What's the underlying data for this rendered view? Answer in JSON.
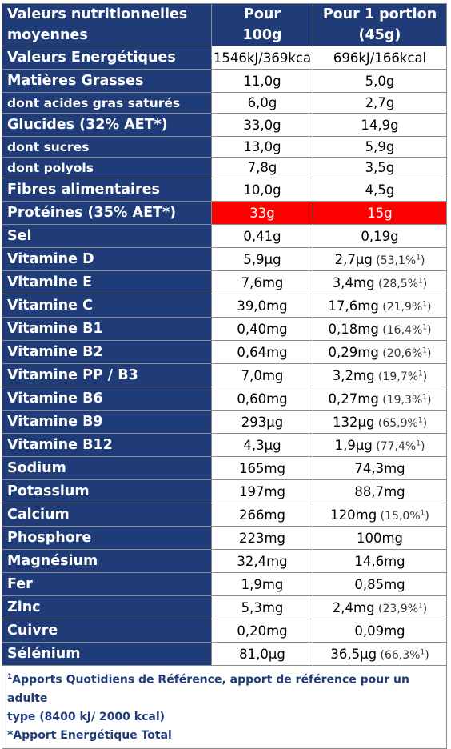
{
  "table": {
    "header": {
      "label_line1": "Valeurs nutritionnelles",
      "label_line2": "moyennes",
      "col1_line1": "Pour",
      "col1_line2": "100g",
      "col2_line1": "Pour 1 portion",
      "col2_line2": "(45g)"
    },
    "rows": [
      {
        "label": "Valeurs Energétiques",
        "per100": "1546kJ/369kca",
        "portion": "696kJ/166kcal",
        "ref": "",
        "style": "main"
      },
      {
        "label": "Matières Grasses",
        "per100": "11,0g",
        "portion": "5,0g",
        "ref": "",
        "style": "main"
      },
      {
        "label": "dont acides gras saturés",
        "per100": "6,0g",
        "portion": "2,7g",
        "ref": "",
        "style": "sub"
      },
      {
        "label": "Glucides (32% AET*)",
        "per100": "33,0g",
        "portion": "14,9g",
        "ref": "",
        "style": "main"
      },
      {
        "label": "dont sucres",
        "per100": "13,0g",
        "portion": "5,9g",
        "ref": "",
        "style": "sub"
      },
      {
        "label": "dont polyols",
        "per100": "7,8g",
        "portion": "3,5g",
        "ref": "",
        "style": "sub"
      },
      {
        "label": "Fibres alimentaires",
        "per100": "10,0g",
        "portion": "4,5g",
        "ref": "",
        "style": "main"
      },
      {
        "label": "Protéines (35% AET*)",
        "per100": "33g",
        "portion": "15g",
        "ref": "",
        "style": "hl"
      },
      {
        "label": "Sel",
        "per100": "0,41g",
        "portion": "0,19g",
        "ref": "",
        "style": "main"
      },
      {
        "label": "Vitamine D",
        "per100": "5,9µg",
        "portion": "2,7µg",
        "ref": "53,1%",
        "style": "main"
      },
      {
        "label": "Vitamine E",
        "per100": "7,6mg",
        "portion": "3,4mg",
        "ref": "28,5%",
        "style": "main"
      },
      {
        "label": "Vitamine C",
        "per100": "39,0mg",
        "portion": "17,6mg",
        "ref": "21,9%",
        "style": "main"
      },
      {
        "label": "Vitamine B1",
        "per100": "0,40mg",
        "portion": "0,18mg",
        "ref": "16,4%",
        "style": "main"
      },
      {
        "label": "Vitamine B2",
        "per100": "0,64mg",
        "portion": "0,29mg",
        "ref": "20,6%",
        "style": "main"
      },
      {
        "label": "Vitamine PP / B3",
        "per100": "7,0mg",
        "portion": "3,2mg",
        "ref": "19,7%",
        "style": "main"
      },
      {
        "label": "Vitamine B6",
        "per100": "0,60mg",
        "portion": "0,27mg",
        "ref": "19,3%",
        "style": "main"
      },
      {
        "label": "Vitamine B9",
        "per100": "293µg",
        "portion": "132µg",
        "ref": "65,9%",
        "style": "main"
      },
      {
        "label": "Vitamine B12",
        "per100": "4,3µg",
        "portion": "1,9µg",
        "ref": "77,4%",
        "style": "main"
      },
      {
        "label": "Sodium",
        "per100": "165mg",
        "portion": "74,3mg",
        "ref": "",
        "style": "main"
      },
      {
        "label": "Potassium",
        "per100": "197mg",
        "portion": "88,7mg",
        "ref": "",
        "style": "main"
      },
      {
        "label": "Calcium",
        "per100": "266mg",
        "portion": "120mg",
        "ref": "15,0%",
        "style": "main"
      },
      {
        "label": "Phosphore",
        "per100": "223mg",
        "portion": "100mg",
        "ref": "",
        "style": "main"
      },
      {
        "label": "Magnésium",
        "per100": "32,4mg",
        "portion": "14,6mg",
        "ref": "",
        "style": "main"
      },
      {
        "label": "Fer",
        "per100": "1,9mg",
        "portion": "0,85mg",
        "ref": "",
        "style": "main"
      },
      {
        "label": "Zinc",
        "per100": "5,3mg",
        "portion": "2,4mg",
        "ref": "23,9%",
        "style": "main"
      },
      {
        "label": "Cuivre",
        "per100": "0,20mg",
        "portion": "0,09mg",
        "ref": "",
        "style": "main"
      },
      {
        "label": "Sélénium",
        "per100": "81,0µg",
        "portion": "36,5µg",
        "ref": "66,3%",
        "style": "main"
      }
    ],
    "ref_marker": "1",
    "footnotes": {
      "marker": "1",
      "line1": "Apports Quotidiens de Référence, apport de référence pour un adulte",
      "line2": "type (8400 kJ/ 2000 kcal)",
      "line3": "*Apport Energétique Total"
    }
  },
  "colors": {
    "header_bg": "#1f3b78",
    "highlight_bg": "#ff0000",
    "text_white": "#ffffff"
  }
}
